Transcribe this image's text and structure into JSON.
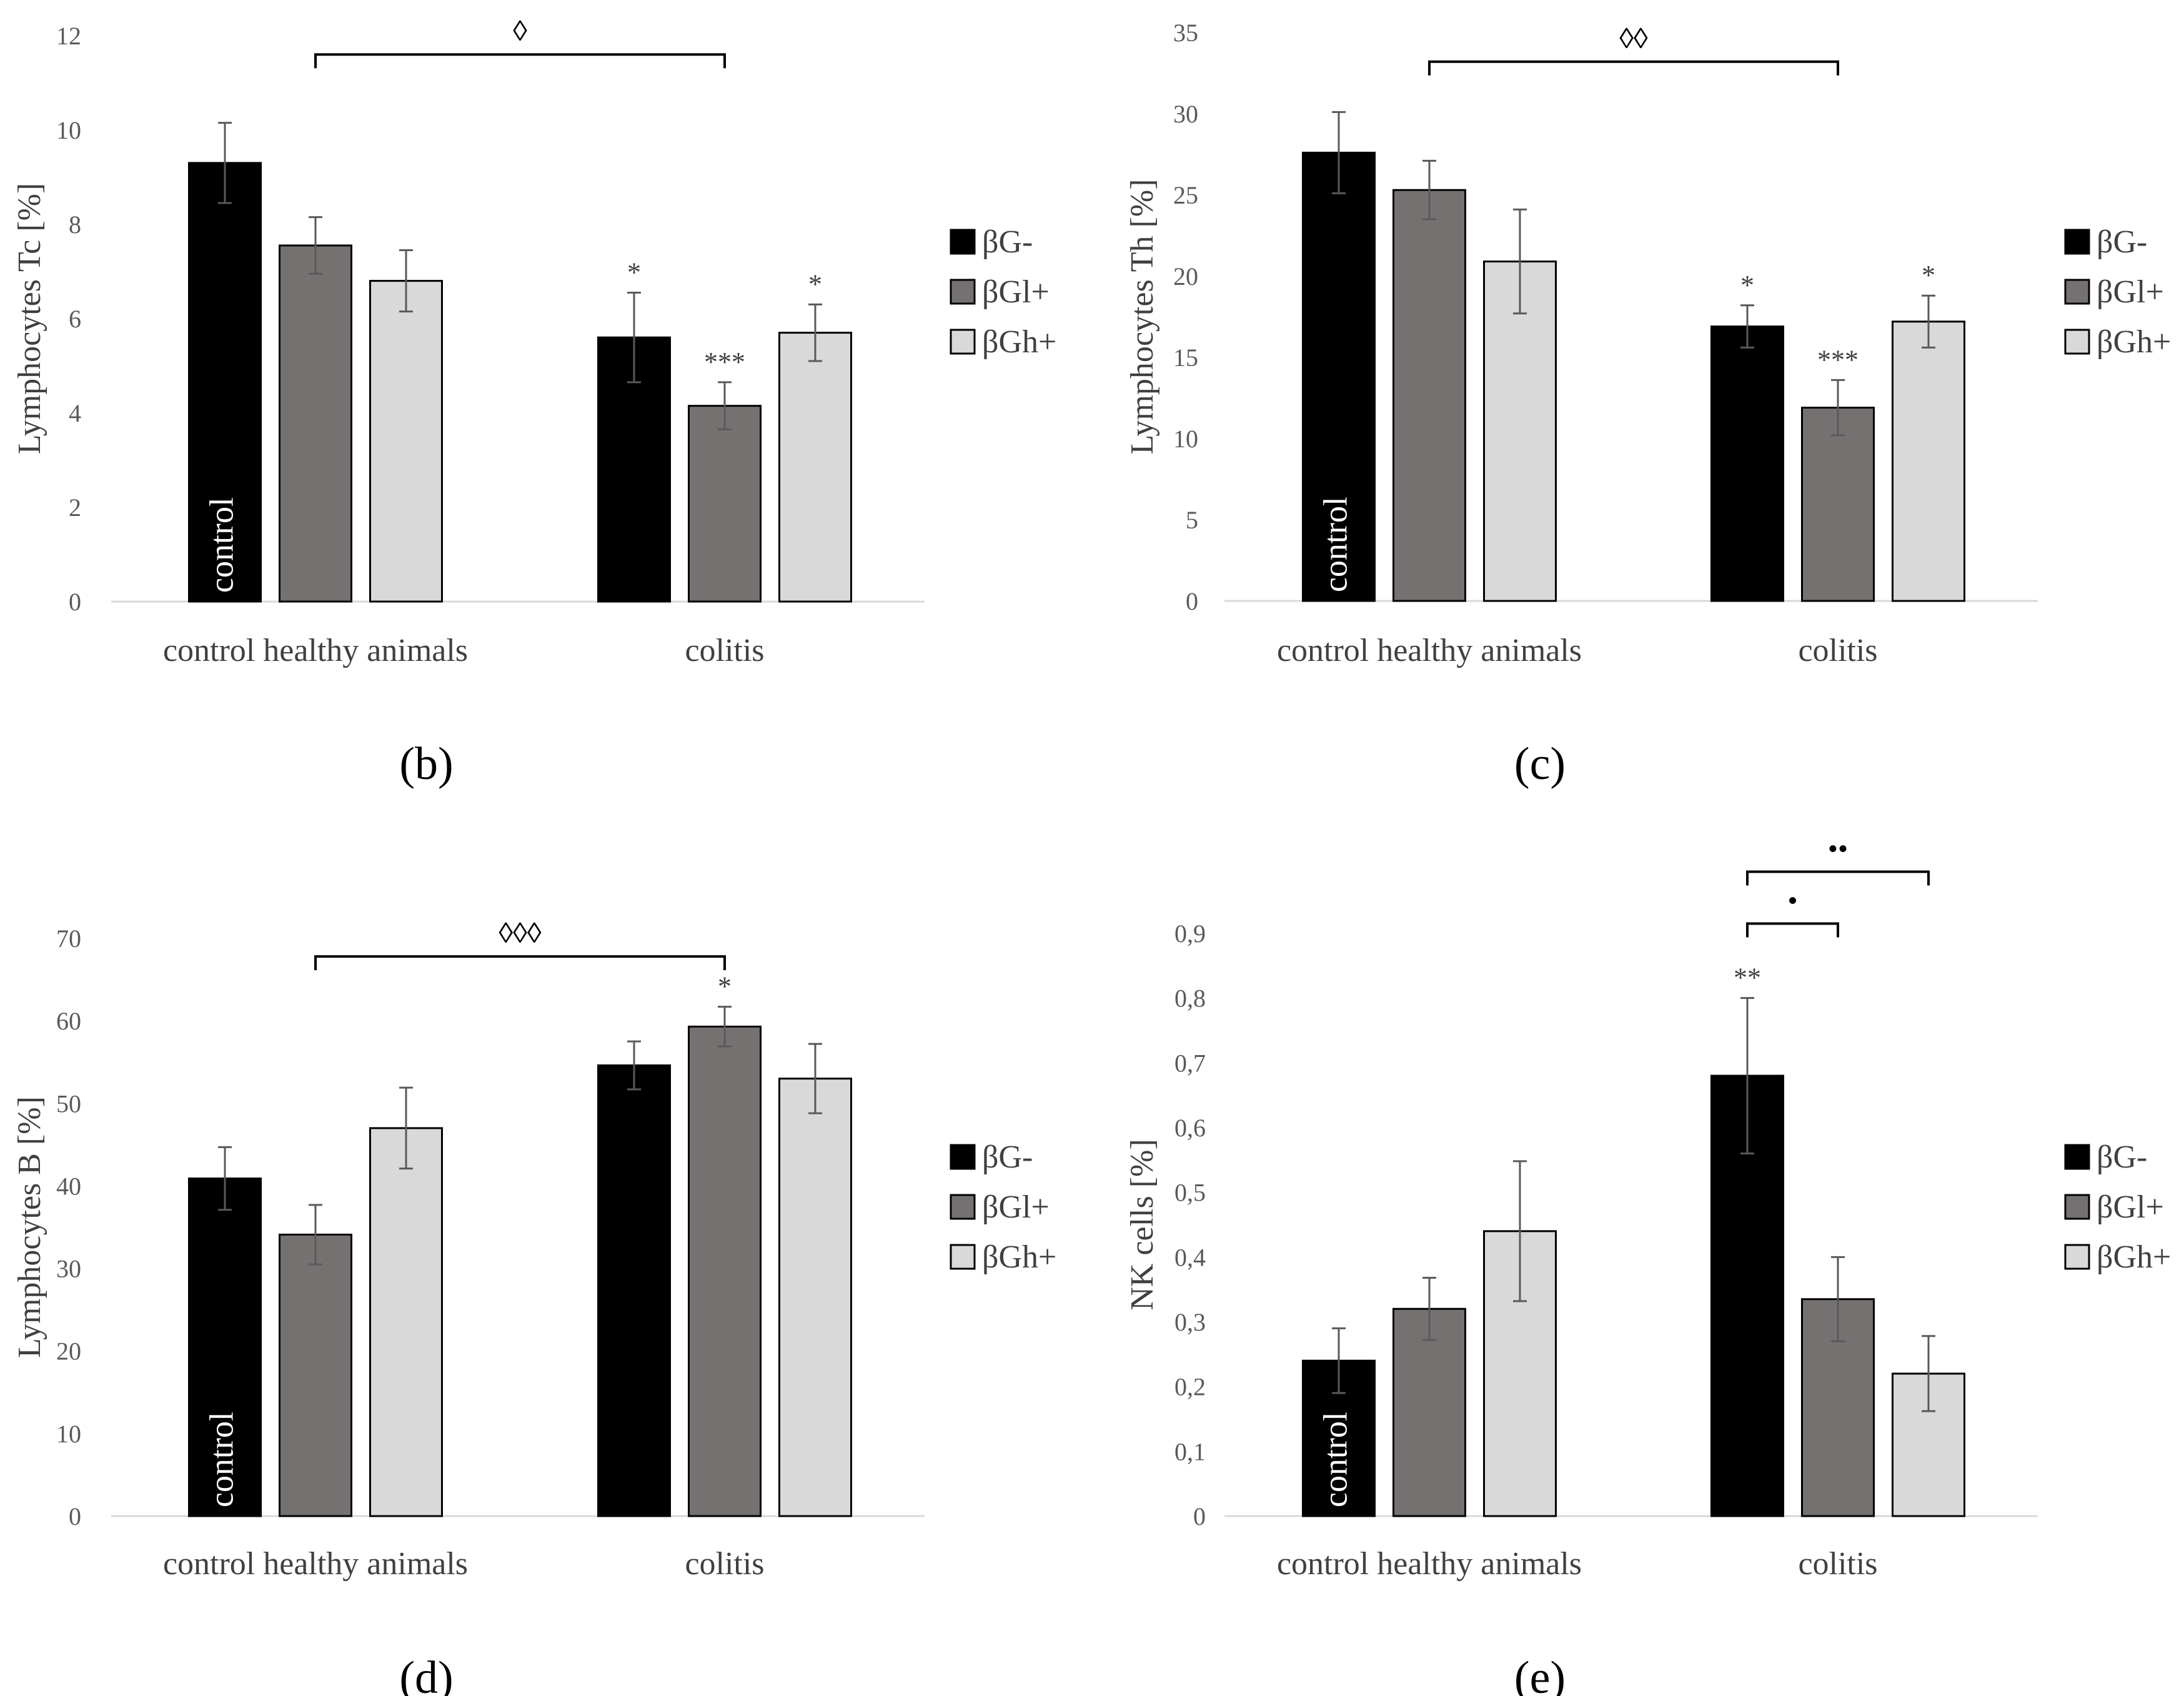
{
  "figure": {
    "categories": [
      "control healthy animals",
      "colitis"
    ],
    "legend": [
      "βG-",
      "βGl+",
      "βGh+"
    ],
    "series_colors": [
      "#000000",
      "#767171",
      "#d9d9d9"
    ],
    "bar_text": "control"
  },
  "chart_data": [
    {
      "id": "b",
      "type": "bar",
      "panel_label": "(b)",
      "ylabel": "Lymphocytes Tc [%]",
      "ylim": [
        0,
        12
      ],
      "yticks": [
        "0",
        "2",
        "4",
        "6",
        "8",
        "10",
        "12"
      ],
      "categories": [
        "control healthy animals",
        "colitis"
      ],
      "series": [
        {
          "name": "βG-",
          "values": [
            9.3,
            5.6
          ],
          "errors": [
            0.85,
            0.95
          ]
        },
        {
          "name": "βGl+",
          "values": [
            7.55,
            4.15
          ],
          "errors": [
            0.6,
            0.5
          ]
        },
        {
          "name": "βGh+",
          "values": [
            6.8,
            5.7
          ],
          "errors": [
            0.65,
            0.6
          ]
        }
      ],
      "annotations": {
        "stars": [
          {
            "cat": 1,
            "series": 0,
            "text": "*"
          },
          {
            "cat": 1,
            "series": 1,
            "text": "***"
          },
          {
            "cat": 1,
            "series": 2,
            "text": "*"
          }
        ],
        "brackets": [
          {
            "from": [
              0,
              1
            ],
            "to": [
              1,
              1
            ],
            "y": 11.6,
            "text": "◊"
          }
        ]
      }
    },
    {
      "id": "c",
      "type": "bar",
      "panel_label": "(c)",
      "ylabel": "Lymphocytes Th [%]",
      "ylim": [
        0,
        35
      ],
      "yticks": [
        "0",
        "5",
        "10",
        "15",
        "20",
        "25",
        "30",
        "35"
      ],
      "categories": [
        "control healthy animals",
        "colitis"
      ],
      "series": [
        {
          "name": "βG-",
          "values": [
            27.6,
            16.9
          ],
          "errors": [
            2.5,
            1.3
          ]
        },
        {
          "name": "βGl+",
          "values": [
            25.3,
            11.9
          ],
          "errors": [
            1.8,
            1.7
          ]
        },
        {
          "name": "βGh+",
          "values": [
            20.9,
            17.2
          ],
          "errors": [
            3.2,
            1.6
          ]
        }
      ],
      "annotations": {
        "stars": [
          {
            "cat": 1,
            "series": 0,
            "text": "*"
          },
          {
            "cat": 1,
            "series": 1,
            "text": "***"
          },
          {
            "cat": 1,
            "series": 2,
            "text": "*"
          }
        ],
        "brackets": [
          {
            "from": [
              0,
              1
            ],
            "to": [
              1,
              1
            ],
            "y": 33.2,
            "text": "◊◊"
          }
        ]
      }
    },
    {
      "id": "d",
      "type": "bar",
      "panel_label": "(d)",
      "ylabel": "Lymphocytes B [%]",
      "ylim": [
        0,
        70
      ],
      "yticks": [
        "0",
        "10",
        "20",
        "30",
        "40",
        "50",
        "60",
        "70"
      ],
      "categories": [
        "control healthy animals",
        "colitis"
      ],
      "series": [
        {
          "name": "βG-",
          "values": [
            40.9,
            54.6
          ],
          "errors": [
            3.8,
            2.9
          ]
        },
        {
          "name": "βGl+",
          "values": [
            34.1,
            59.3
          ],
          "errors": [
            3.6,
            2.4
          ]
        },
        {
          "name": "βGh+",
          "values": [
            47.0,
            53.0
          ],
          "errors": [
            4.9,
            4.2
          ]
        }
      ],
      "annotations": {
        "stars": [
          {
            "cat": 1,
            "series": 1,
            "text": "*"
          }
        ],
        "brackets": [
          {
            "from": [
              0,
              1
            ],
            "to": [
              1,
              1
            ],
            "y": 67.8,
            "text": "◊◊◊"
          }
        ]
      }
    },
    {
      "id": "e",
      "type": "bar",
      "panel_label": "(e)",
      "ylabel": "NK cells [%]",
      "ylim": [
        0,
        0.9
      ],
      "yticks": [
        "0",
        "0,1",
        "0,2",
        "0,3",
        "0,4",
        "0,5",
        "0,6",
        "0,7",
        "0,8",
        "0,9"
      ],
      "categories": [
        "control healthy animals",
        "colitis"
      ],
      "series": [
        {
          "name": "βG-",
          "values": [
            0.24,
            0.68
          ],
          "errors": [
            0.05,
            0.12
          ]
        },
        {
          "name": "βGl+",
          "values": [
            0.32,
            0.335
          ],
          "errors": [
            0.048,
            0.065
          ]
        },
        {
          "name": "βGh+",
          "values": [
            0.44,
            0.22
          ],
          "errors": [
            0.108,
            0.058
          ]
        }
      ],
      "annotations": {
        "stars": [
          {
            "cat": 1,
            "series": 0,
            "text": "**"
          }
        ],
        "brackets": [
          {
            "from": [
              1,
              0
            ],
            "to": [
              1,
              1
            ],
            "y": 0.915,
            "text": "•"
          },
          {
            "from": [
              1,
              0
            ],
            "to": [
              1,
              2
            ],
            "y": 0.995,
            "text": "••"
          }
        ]
      }
    }
  ]
}
